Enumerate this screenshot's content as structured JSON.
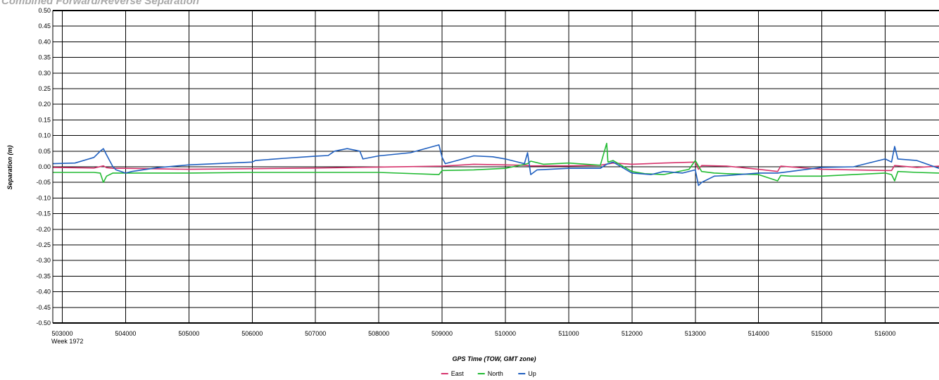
{
  "chart_data": {
    "type": "line",
    "title": "Combined Forward/Reverse Separation",
    "xlabel": "GPS Time (TOW, GMT zone)",
    "ylabel": "Separation (m)",
    "week_label": "Week 1972",
    "xlim": [
      502850,
      516850
    ],
    "ylim": [
      -0.5,
      0.5
    ],
    "x_ticks": [
      503000,
      504000,
      505000,
      506000,
      507000,
      508000,
      509000,
      510000,
      511000,
      512000,
      513000,
      514000,
      515000,
      516000
    ],
    "y_ticks": [
      0.5,
      0.45,
      0.4,
      0.35,
      0.3,
      0.25,
      0.2,
      0.15,
      0.1,
      0.05,
      0.0,
      -0.05,
      -0.1,
      -0.15,
      -0.2,
      -0.25,
      -0.3,
      -0.35,
      -0.4,
      -0.45,
      -0.5
    ],
    "grid": true,
    "legend_position": "bottom-center",
    "series": [
      {
        "name": "East",
        "color": "#d6336c",
        "x": [
          502850,
          503500,
          503650,
          503700,
          503800,
          504000,
          505000,
          506000,
          507000,
          508000,
          509000,
          509500,
          510000,
          510300,
          510400,
          511000,
          511500,
          511700,
          512000,
          512500,
          513000,
          513050,
          513100,
          513500,
          514000,
          514300,
          514350,
          515000,
          516000,
          516100,
          516150,
          516500,
          516850
        ],
        "y": [
          -0.002,
          -0.004,
          0.003,
          -0.003,
          -0.005,
          -0.005,
          -0.008,
          -0.006,
          -0.004,
          -0.001,
          0.002,
          0.008,
          0.006,
          0.005,
          0.003,
          0.003,
          0.005,
          0.012,
          0.008,
          0.012,
          0.015,
          -0.008,
          0.004,
          0.002,
          -0.008,
          -0.015,
          0.002,
          -0.008,
          -0.012,
          -0.012,
          0.004,
          -0.002,
          0.002
        ]
      },
      {
        "name": "North",
        "color": "#22bb33",
        "x": [
          502850,
          503500,
          503600,
          503650,
          503700,
          503800,
          504000,
          504500,
          505000,
          506000,
          507000,
          508000,
          508950,
          509000,
          509500,
          510000,
          510350,
          510400,
          510600,
          511000,
          511500,
          511600,
          511620,
          511700,
          512000,
          512200,
          512500,
          512900,
          513000,
          513100,
          513300,
          513500,
          514000,
          514300,
          514350,
          514500,
          515000,
          515500,
          516000,
          516100,
          516150,
          516200,
          516500,
          516850
        ],
        "y": [
          -0.018,
          -0.018,
          -0.02,
          -0.05,
          -0.03,
          -0.02,
          -0.02,
          -0.02,
          -0.02,
          -0.018,
          -0.018,
          -0.018,
          -0.025,
          -0.012,
          -0.01,
          -0.005,
          0.01,
          0.018,
          0.008,
          0.012,
          0.005,
          0.075,
          0.015,
          0.02,
          -0.015,
          -0.022,
          -0.025,
          -0.008,
          0.02,
          -0.015,
          -0.02,
          -0.022,
          -0.025,
          -0.045,
          -0.028,
          -0.03,
          -0.03,
          -0.025,
          -0.02,
          -0.025,
          -0.045,
          -0.015,
          -0.018,
          -0.02
        ]
      },
      {
        "name": "Up",
        "color": "#1f5fbf",
        "x": [
          502850,
          503200,
          503500,
          503600,
          503650,
          503700,
          503800,
          503850,
          504000,
          504100,
          504500,
          505000,
          506000,
          506050,
          506500,
          507000,
          507200,
          507300,
          507500,
          507700,
          507750,
          508000,
          508500,
          508950,
          509000,
          509050,
          509200,
          509500,
          509800,
          510000,
          510300,
          510350,
          510400,
          510500,
          511000,
          511500,
          511600,
          511700,
          512000,
          512300,
          512500,
          512800,
          513000,
          513050,
          513100,
          513300,
          513500,
          514000,
          514300,
          514500,
          515000,
          515500,
          516000,
          516100,
          516150,
          516200,
          516500,
          516850
        ],
        "y": [
          0.01,
          0.012,
          0.03,
          0.05,
          0.058,
          0.038,
          0.0,
          -0.01,
          -0.02,
          -0.015,
          -0.003,
          0.006,
          0.015,
          0.02,
          0.027,
          0.034,
          0.036,
          0.05,
          0.058,
          0.05,
          0.025,
          0.035,
          0.045,
          0.07,
          0.03,
          0.01,
          0.018,
          0.035,
          0.032,
          0.025,
          0.01,
          0.045,
          -0.025,
          -0.01,
          -0.005,
          -0.005,
          0.008,
          0.015,
          -0.02,
          -0.025,
          -0.015,
          -0.02,
          -0.01,
          -0.06,
          -0.05,
          -0.03,
          -0.028,
          -0.02,
          -0.02,
          -0.015,
          -0.002,
          0.0,
          0.025,
          0.015,
          0.065,
          0.025,
          0.02,
          -0.005
        ]
      }
    ]
  }
}
